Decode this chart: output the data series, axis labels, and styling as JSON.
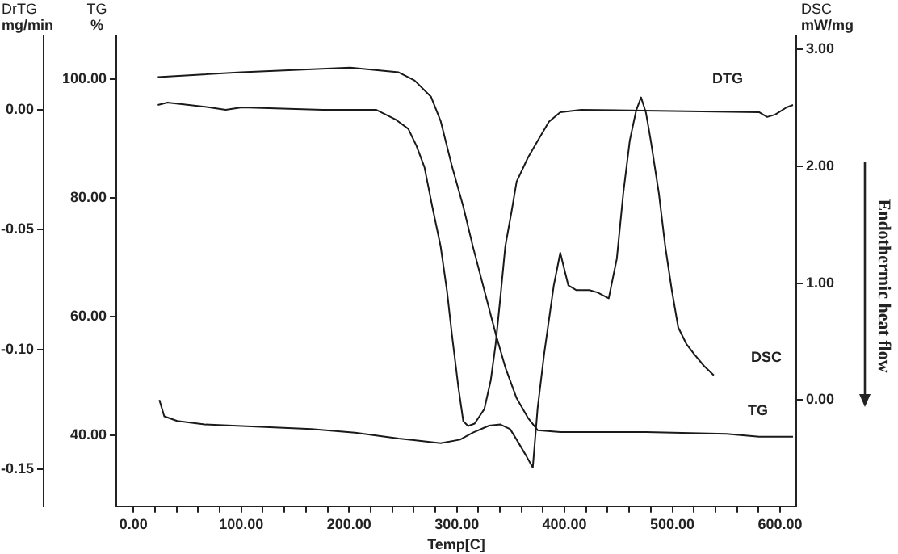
{
  "chart_data": {
    "type": "line",
    "xlabel": "Temp[C]",
    "ylabel": "TG %",
    "y2label": "DSC mW/mg",
    "y3label": "DrTG mg/min",
    "annotations": [
      "Endothermic heat flow"
    ],
    "xlim": [
      -16,
      615
    ],
    "xticks": [
      {
        "value": 0,
        "label": "0.00"
      },
      {
        "value": 20,
        "label": null
      },
      {
        "value": 40,
        "label": null
      },
      {
        "value": 60,
        "label": null
      },
      {
        "value": 80,
        "label": null
      },
      {
        "value": 100,
        "label": "100.00"
      },
      {
        "value": 120,
        "label": null
      },
      {
        "value": 140,
        "label": null
      },
      {
        "value": 160,
        "label": null
      },
      {
        "value": 180,
        "label": null
      },
      {
        "value": 200,
        "label": "200.00"
      },
      {
        "value": 220,
        "label": null
      },
      {
        "value": 240,
        "label": null
      },
      {
        "value": 260,
        "label": null
      },
      {
        "value": 280,
        "label": null
      },
      {
        "value": 300,
        "label": "300.00"
      },
      {
        "value": 320,
        "label": null
      },
      {
        "value": 340,
        "label": null
      },
      {
        "value": 360,
        "label": null
      },
      {
        "value": 380,
        "label": null
      },
      {
        "value": 400,
        "label": "400.00"
      },
      {
        "value": 420,
        "label": null
      },
      {
        "value": 440,
        "label": null
      },
      {
        "value": 460,
        "label": null
      },
      {
        "value": 480,
        "label": null
      },
      {
        "value": 500,
        "label": "500.00"
      },
      {
        "value": 520,
        "label": null
      },
      {
        "value": 540,
        "label": null
      },
      {
        "value": 560,
        "label": null
      },
      {
        "value": 580,
        "label": null
      },
      {
        "value": 600,
        "label": "600.00"
      }
    ],
    "ylim": [
      28,
      107.3
    ],
    "yticks": [
      {
        "value": 40,
        "label": "40.00"
      },
      {
        "value": 60,
        "label": "60.00"
      },
      {
        "value": 80,
        "label": "80.00"
      },
      {
        "value": 100,
        "label": "100.00"
      }
    ],
    "y2lim": [
      -0.91,
      3.12
    ],
    "y2ticks": [
      {
        "value": 0,
        "label": "0.00"
      },
      {
        "value": 1,
        "label": "1.00"
      },
      {
        "value": 2,
        "label": "2.00"
      },
      {
        "value": 3,
        "label": "3.00"
      }
    ],
    "y3lim": [
      -0.1655,
      0.031
    ],
    "y3ticks": [
      {
        "value": -0.15,
        "label": "-0.15"
      },
      {
        "value": -0.1,
        "label": "-0.10"
      },
      {
        "value": -0.05,
        "label": "-0.05"
      },
      {
        "value": 0,
        "label": "0.00"
      }
    ],
    "grid": false,
    "legend": false,
    "series": [
      {
        "name": "TG",
        "color": "#1a1a1a",
        "axis": "y",
        "x": [
          22.5,
          100,
          201,
          246,
          261,
          276,
          285,
          295.5,
          306,
          315,
          325.5,
          336,
          345,
          355.5,
          366,
          375,
          396,
          475.5,
          550.5,
          580.5,
          612
        ],
        "values": [
          100.3,
          101.1,
          101.9,
          101.1,
          99.7,
          97.0,
          92.9,
          85.3,
          78.5,
          71.7,
          64.4,
          57.1,
          51.4,
          46.2,
          42.9,
          40.8,
          40.5,
          40.5,
          40.2,
          39.7,
          39.7
        ]
      },
      {
        "name": "DTG",
        "color": "#1a1a1a",
        "axis": "y3",
        "x": [
          22.5,
          31.5,
          70.5,
          85.5,
          100.5,
          175.5,
          225,
          243,
          255,
          262.5,
          270,
          277.5,
          285,
          291,
          295.5,
          301.5,
          306,
          310.5,
          316.5,
          325.5,
          331.5,
          336,
          340.5,
          345,
          351,
          355.5,
          366,
          375,
          385.5,
          396,
          415.5,
          580.5,
          588,
          595.5,
          606,
          612
        ],
        "values": [
          0.002,
          0.003,
          0.001,
          0,
          0.001,
          0,
          0,
          -0.004,
          -0.008,
          -0.015,
          -0.024,
          -0.041,
          -0.057,
          -0.076,
          -0.094,
          -0.116,
          -0.13,
          -0.132,
          -0.131,
          -0.125,
          -0.113,
          -0.098,
          -0.078,
          -0.057,
          -0.042,
          -0.03,
          -0.02,
          -0.013,
          -0.005,
          -0.001,
          0,
          -0.001,
          -0.003,
          -0.002,
          0.001,
          0.002
        ]
      },
      {
        "name": "DSC",
        "color": "#1a1a1a",
        "axis": "y2",
        "x": [
          24,
          28.5,
          40.5,
          66,
          165,
          205.5,
          246,
          285,
          303,
          315,
          330,
          340.5,
          349.5,
          355.5,
          364.5,
          370.5,
          375,
          381,
          390,
          396,
          403.5,
          411,
          423,
          430.5,
          441,
          448.5,
          454.5,
          460.5,
          466.5,
          471,
          475.5,
          480,
          487.5,
          493.5,
          499.5,
          505.5,
          513,
          520.5,
          529.5,
          538.5
        ],
        "values": [
          0.0,
          -0.14,
          -0.18,
          -0.21,
          -0.25,
          -0.28,
          -0.33,
          -0.37,
          -0.34,
          -0.28,
          -0.22,
          -0.21,
          -0.25,
          -0.34,
          -0.48,
          -0.58,
          -0.07,
          0.39,
          0.98,
          1.26,
          0.98,
          0.94,
          0.94,
          0.92,
          0.87,
          1.21,
          1.77,
          2.22,
          2.48,
          2.59,
          2.46,
          2.22,
          1.77,
          1.31,
          0.94,
          0.62,
          0.48,
          0.39,
          0.29,
          0.21
        ]
      }
    ]
  }
}
